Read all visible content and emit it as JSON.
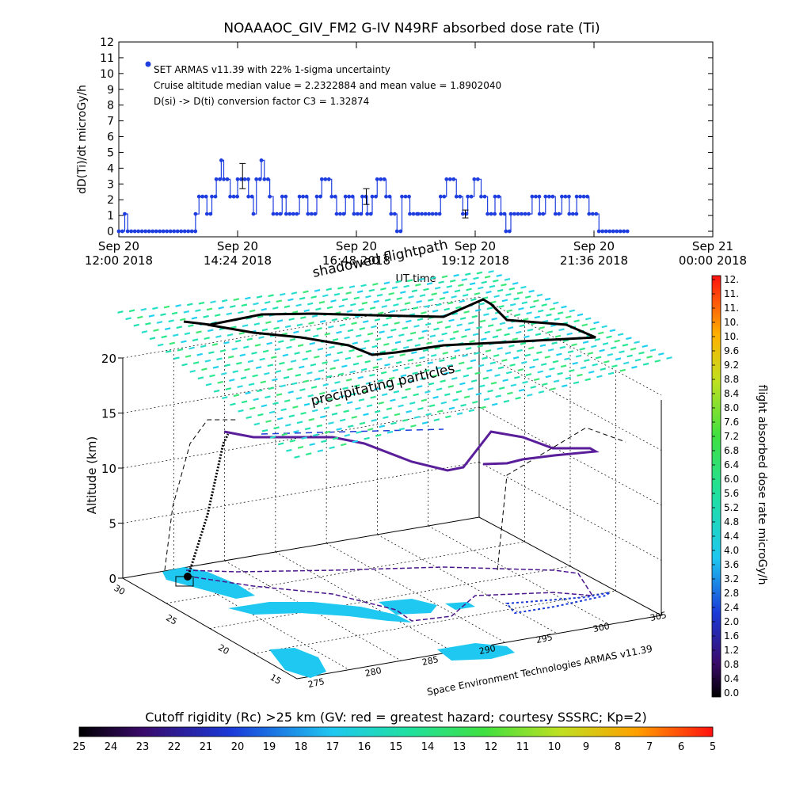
{
  "chart_data": [
    {
      "type": "scatter",
      "title": "NOAAAOC_GIV_FM2 G-IV   N49RF  absorbed dose rate (Ti)",
      "ylabel": "dD(Ti)/dt microGy/h",
      "xlabel": "UT time",
      "ylim": [
        0,
        12
      ],
      "yticks": [
        "0",
        "1",
        "2",
        "3",
        "4",
        "5",
        "6",
        "7",
        "8",
        "9",
        "10",
        "11",
        "12"
      ],
      "xticks": [
        {
          "top": "Sep 20",
          "bottom": "12:00 2018",
          "hour": 12.0
        },
        {
          "top": "Sep 20",
          "bottom": "14:24 2018",
          "hour": 14.4
        },
        {
          "top": "Sep 20",
          "bottom": "16:48 2018",
          "hour": 16.8
        },
        {
          "top": "Sep 20",
          "bottom": "19:12 2018",
          "hour": 19.2
        },
        {
          "top": "Sep 20",
          "bottom": "21:36 2018",
          "hour": 21.6
        },
        {
          "top": "Sep 21",
          "bottom": "00:00 2018",
          "hour": 24.0
        }
      ],
      "xlim_hours": [
        12.0,
        24.0
      ],
      "legend": [
        "SET ARMAS v11.39 with 22% 1-sigma uncertainty",
        "Cruise altitude median value = 2.2322884 and mean value = 1.8902040",
        "D(si) -> D(ti) conversion factor C3 = 1.32874"
      ],
      "marker_color": "#1f3ee0",
      "segments": [
        {
          "t0": 12.0,
          "t1": 12.12,
          "v": 0
        },
        {
          "t0": 12.12,
          "t1": 12.18,
          "v": 1.1
        },
        {
          "t0": 12.18,
          "t1": 13.55,
          "v": 0
        },
        {
          "t0": 13.55,
          "t1": 13.62,
          "v": 1.1
        },
        {
          "t0": 13.62,
          "t1": 13.78,
          "v": 2.2
        },
        {
          "t0": 13.78,
          "t1": 13.88,
          "v": 1.1
        },
        {
          "t0": 13.88,
          "t1": 13.97,
          "v": 2.2
        },
        {
          "t0": 13.97,
          "t1": 14.07,
          "v": 3.3
        },
        {
          "t0": 14.07,
          "t1": 14.12,
          "v": 4.5
        },
        {
          "t0": 14.12,
          "t1": 14.25,
          "v": 3.3
        },
        {
          "t0": 14.25,
          "t1": 14.4,
          "v": 2.2
        },
        {
          "t0": 14.4,
          "t1": 14.62,
          "v": 3.3
        },
        {
          "t0": 14.62,
          "t1": 14.72,
          "v": 2.2
        },
        {
          "t0": 14.72,
          "t1": 14.78,
          "v": 1.1
        },
        {
          "t0": 14.78,
          "t1": 14.88,
          "v": 3.3
        },
        {
          "t0": 14.88,
          "t1": 14.94,
          "v": 4.5
        },
        {
          "t0": 14.94,
          "t1": 15.05,
          "v": 3.3
        },
        {
          "t0": 15.05,
          "t1": 15.12,
          "v": 2.2
        },
        {
          "t0": 15.12,
          "t1": 15.3,
          "v": 1.1
        },
        {
          "t0": 15.3,
          "t1": 15.38,
          "v": 2.2
        },
        {
          "t0": 15.38,
          "t1": 15.65,
          "v": 1.1
        },
        {
          "t0": 15.65,
          "t1": 15.82,
          "v": 2.2
        },
        {
          "t0": 15.82,
          "t1": 16.0,
          "v": 1.1
        },
        {
          "t0": 16.0,
          "t1": 16.1,
          "v": 2.2
        },
        {
          "t0": 16.1,
          "t1": 16.3,
          "v": 3.3
        },
        {
          "t0": 16.3,
          "t1": 16.4,
          "v": 2.2
        },
        {
          "t0": 16.4,
          "t1": 16.58,
          "v": 1.1
        },
        {
          "t0": 16.58,
          "t1": 16.75,
          "v": 2.2
        },
        {
          "t0": 16.75,
          "t1": 16.92,
          "v": 1.1
        },
        {
          "t0": 16.92,
          "t1": 17.02,
          "v": 2.2
        },
        {
          "t0": 17.02,
          "t1": 17.12,
          "v": 1.1
        },
        {
          "t0": 17.12,
          "t1": 17.22,
          "v": 2.2
        },
        {
          "t0": 17.22,
          "t1": 17.4,
          "v": 3.3
        },
        {
          "t0": 17.4,
          "t1": 17.5,
          "v": 2.2
        },
        {
          "t0": 17.5,
          "t1": 17.62,
          "v": 1.1
        },
        {
          "t0": 17.62,
          "t1": 17.72,
          "v": 0
        },
        {
          "t0": 17.72,
          "t1": 17.88,
          "v": 2.2
        },
        {
          "t0": 17.88,
          "t1": 18.05,
          "v": 1.1
        },
        {
          "t0": 18.05,
          "t1": 18.5,
          "v": 1.1
        },
        {
          "t0": 18.5,
          "t1": 18.62,
          "v": 2.2
        },
        {
          "t0": 18.62,
          "t1": 18.82,
          "v": 3.3
        },
        {
          "t0": 18.82,
          "t1": 18.95,
          "v": 2.2
        },
        {
          "t0": 18.95,
          "t1": 19.05,
          "v": 1.1
        },
        {
          "t0": 19.05,
          "t1": 19.18,
          "v": 2.2
        },
        {
          "t0": 19.18,
          "t1": 19.32,
          "v": 3.3
        },
        {
          "t0": 19.32,
          "t1": 19.45,
          "v": 2.2
        },
        {
          "t0": 19.45,
          "t1": 19.6,
          "v": 1.1
        },
        {
          "t0": 19.6,
          "t1": 19.72,
          "v": 2.2
        },
        {
          "t0": 19.72,
          "t1": 19.82,
          "v": 1.1
        },
        {
          "t0": 19.82,
          "t1": 19.92,
          "v": 0
        },
        {
          "t0": 19.92,
          "t1": 20.35,
          "v": 1.1
        },
        {
          "t0": 20.35,
          "t1": 20.5,
          "v": 2.2
        },
        {
          "t0": 20.5,
          "t1": 20.62,
          "v": 1.1
        },
        {
          "t0": 20.62,
          "t1": 20.82,
          "v": 2.2
        },
        {
          "t0": 20.82,
          "t1": 20.95,
          "v": 1.1
        },
        {
          "t0": 20.95,
          "t1": 21.1,
          "v": 2.2
        },
        {
          "t0": 21.1,
          "t1": 21.25,
          "v": 1.1
        },
        {
          "t0": 21.25,
          "t1": 21.5,
          "v": 2.2
        },
        {
          "t0": 21.5,
          "t1": 21.7,
          "v": 1.1
        },
        {
          "t0": 21.7,
          "t1": 22.3,
          "v": 0
        }
      ],
      "error_bars": [
        {
          "t": 14.5,
          "v": 3.5,
          "err": 0.8
        },
        {
          "t": 17.0,
          "v": 2.2,
          "err": 0.5
        },
        {
          "t": 19.0,
          "v": 1.1,
          "err": 0.25
        }
      ]
    },
    {
      "type": "3d-surface",
      "labels": {
        "shadowed": "shadowed flightpath",
        "precip": "precipitating particles",
        "zlabel": "Altitude (km)",
        "footer": "Space Environment Technologies ARMAS v11.39"
      },
      "zticks": [
        "0",
        "5",
        "10",
        "15",
        "20"
      ],
      "lat_ticks": [
        "30",
        "25",
        "20",
        "15"
      ],
      "lon_ticks": [
        "275",
        "280",
        "285",
        "290",
        "295",
        "300",
        "305"
      ]
    },
    {
      "type": "colorbar",
      "label": "flight absorbed dose rate microGy/h",
      "ticks": [
        "0.0",
        "0.4",
        "0.8",
        "1.2",
        "1.6",
        "2.0",
        "2.4",
        "2.8",
        "3.2",
        "3.6",
        "4.0",
        "4.4",
        "4.8",
        "5.2",
        "5.6",
        "6.0",
        "6.4",
        "6.8",
        "7.2",
        "7.6",
        "8.0",
        "8.4",
        "8.8",
        "9.2",
        "9.6",
        "10.",
        "10.",
        "11.",
        "11.",
        "12."
      ]
    },
    {
      "type": "colorbar",
      "label": "Cutoff rigidity (Rc) >25 km (GV: red = greatest hazard; courtesy SSSRC; Kp=2)",
      "ticks": [
        "25",
        "24",
        "23",
        "22",
        "21",
        "20",
        "19",
        "18",
        "17",
        "16",
        "15",
        "14",
        "13",
        "12",
        "11",
        "10",
        "9",
        "8",
        "7",
        "6",
        "5"
      ]
    }
  ]
}
